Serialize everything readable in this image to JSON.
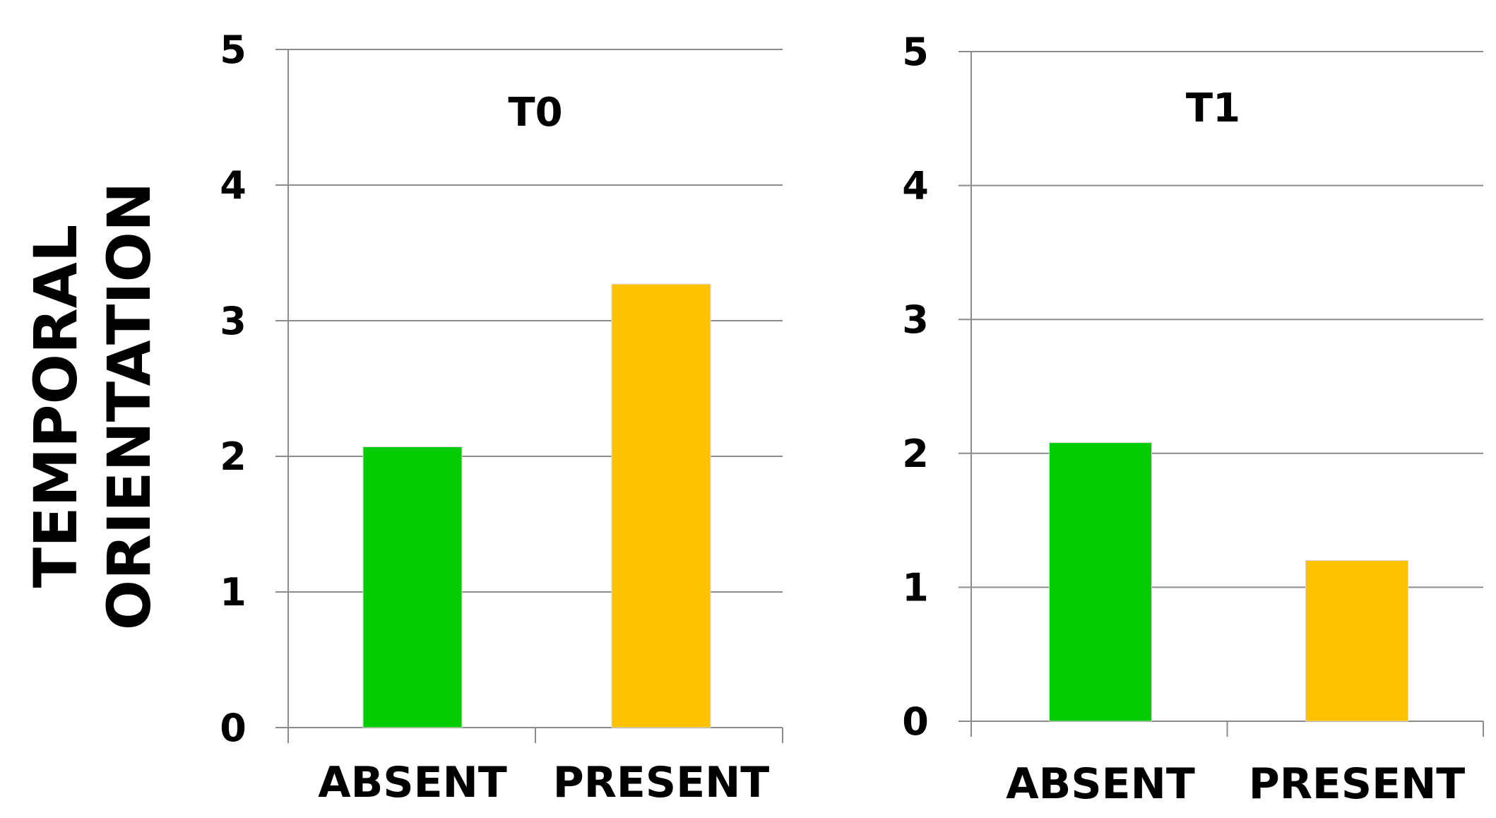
{
  "ylabel_lines": [
    "TEMPORAL",
    "ORIENTATION"
  ],
  "chart_data": [
    {
      "type": "bar",
      "title": "T0",
      "categories": [
        "ABSENT",
        "PRESENT"
      ],
      "values": [
        2.07,
        3.27
      ],
      "colors": [
        "#00cc00",
        "#ffc200"
      ],
      "ylim": [
        0,
        5
      ],
      "yticks": [
        "0",
        "1",
        "2",
        "3",
        "4",
        "5"
      ],
      "grid": true,
      "ylabel": "TEMPORAL ORIENTATION",
      "xlabel": ""
    },
    {
      "type": "bar",
      "title": "T1",
      "categories": [
        "ABSENT",
        "PRESENT"
      ],
      "values": [
        2.08,
        1.2
      ],
      "colors": [
        "#00cc00",
        "#ffc200"
      ],
      "ylim": [
        0,
        5
      ],
      "yticks": [
        "0",
        "1",
        "2",
        "3",
        "4",
        "5"
      ],
      "grid": true,
      "xlabel": ""
    }
  ]
}
